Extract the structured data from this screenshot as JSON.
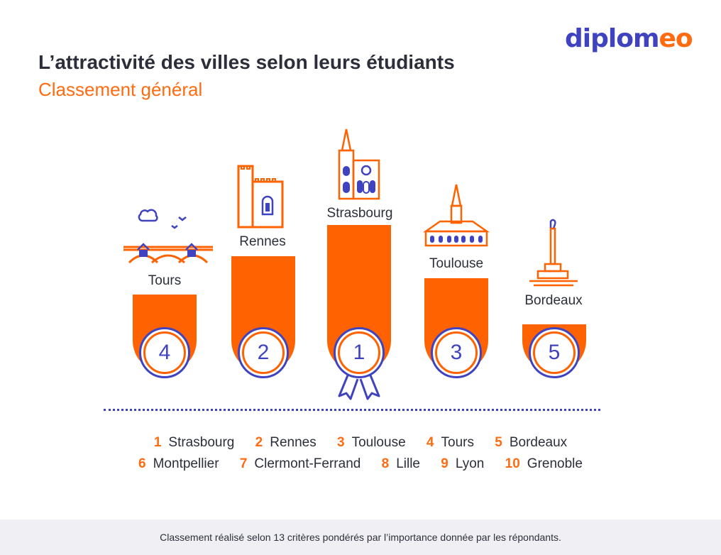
{
  "brand": {
    "logo_text_dark": "diplom",
    "logo_text_light": "eo",
    "dark_color": "#3f43c0",
    "light_color": "#ff6b10"
  },
  "header": {
    "title": "L’attractivité des villes selon leurs étudiants",
    "subtitle": "Classement général"
  },
  "podium": [
    {
      "city": "Tours",
      "rank": "4",
      "landmark": "bridge-icon"
    },
    {
      "city": "Rennes",
      "rank": "2",
      "landmark": "castle-icon"
    },
    {
      "city": "Strasbourg",
      "rank": "1",
      "landmark": "cathedral-icon"
    },
    {
      "city": "Toulouse",
      "rank": "3",
      "landmark": "capitole-icon"
    },
    {
      "city": "Bordeaux",
      "rank": "5",
      "landmark": "monument-icon"
    }
  ],
  "ranking_row1": [
    {
      "rank": "1",
      "city": "Strasbourg"
    },
    {
      "rank": "2",
      "city": "Rennes"
    },
    {
      "rank": "3",
      "city": "Toulouse"
    },
    {
      "rank": "4",
      "city": "Tours"
    },
    {
      "rank": "5",
      "city": "Bordeaux"
    }
  ],
  "ranking_row2": [
    {
      "rank": "6",
      "city": "Montpellier"
    },
    {
      "rank": "7",
      "city": "Clermont-Ferrand"
    },
    {
      "rank": "8",
      "city": "Lille"
    },
    {
      "rank": "9",
      "city": "Lyon"
    },
    {
      "rank": "10",
      "city": "Grenoble"
    }
  ],
  "footer": {
    "note": "Classement réalisé selon 13 critères pondérés par l’importance donnée par les répondants."
  },
  "colors": {
    "accent": "#ff6200",
    "navy": "#3f43c0",
    "text": "#2c2f3a",
    "footer_bg": "#efeff4"
  }
}
